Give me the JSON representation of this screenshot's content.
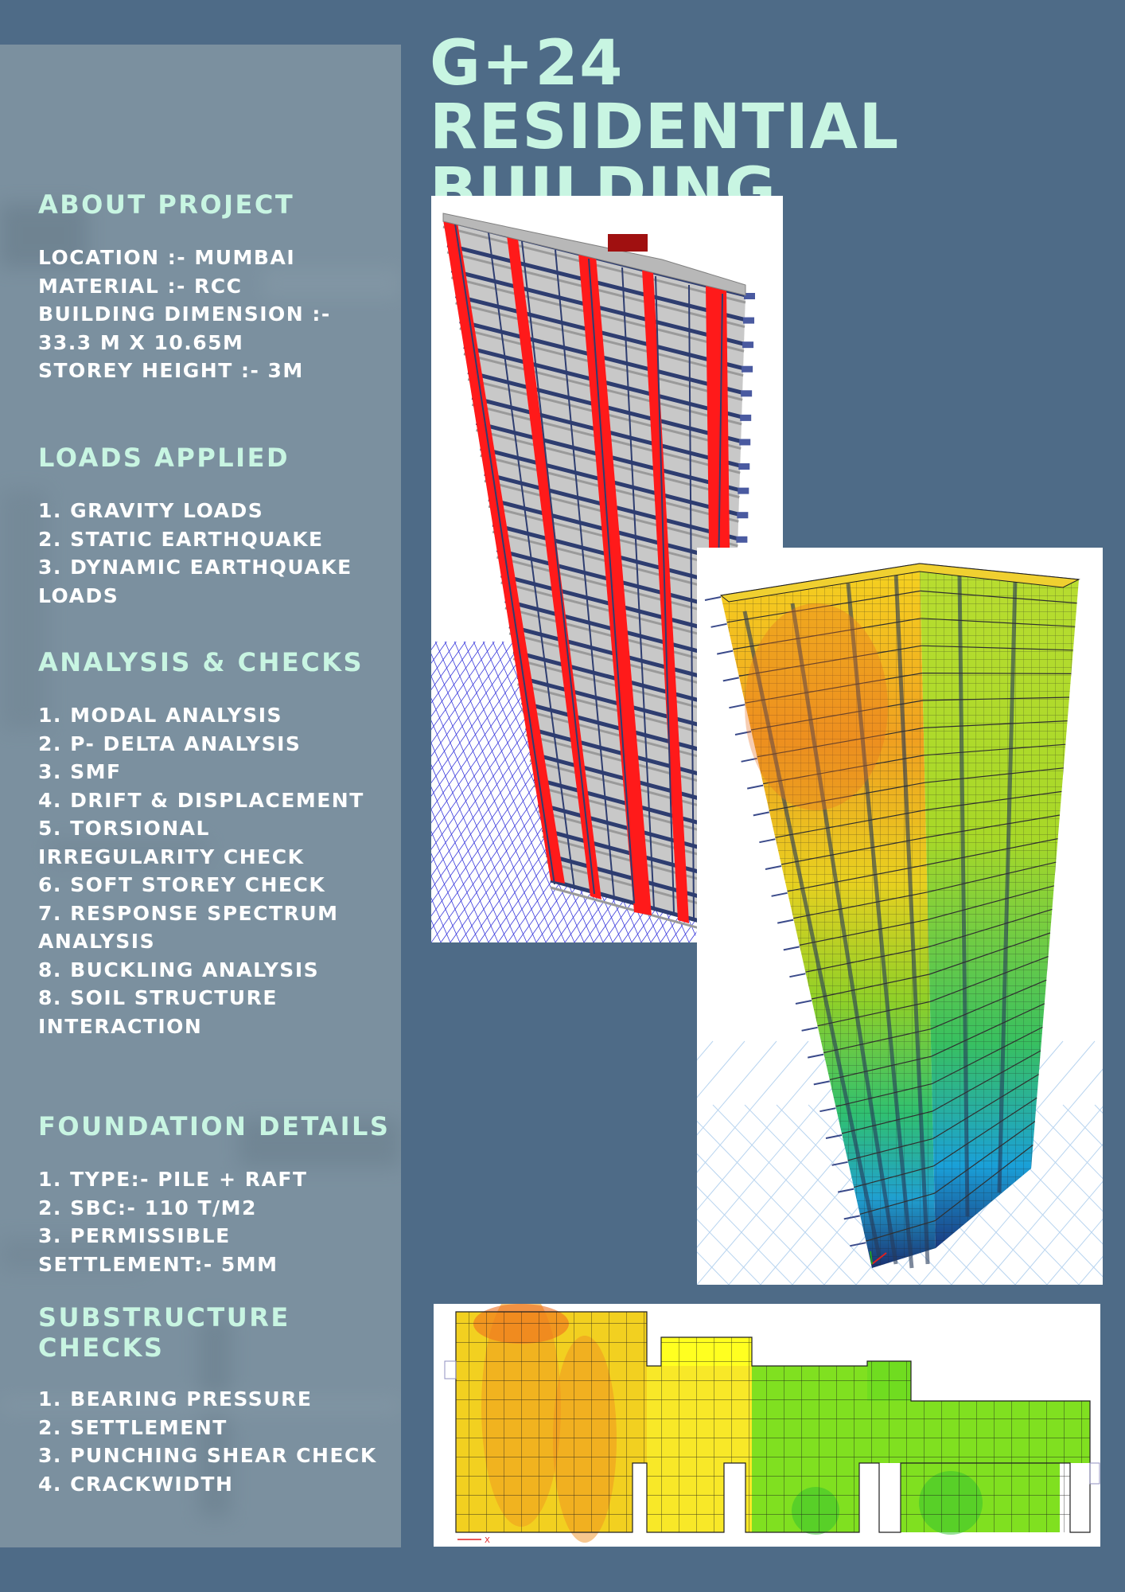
{
  "title": "G+24 RESIDENTIAL BUILDING",
  "sections": {
    "about": {
      "heading": "ABOUT PROJECT",
      "lines": [
        "LOCATION :- MUMBAI",
        "MATERIAL :- RCC",
        "BUILDING DIMENSION :-",
        "33.3 M X 10.65M",
        "STOREY HEIGHT :- 3M"
      ]
    },
    "loads": {
      "heading": "LOADS APPLIED",
      "lines": [
        "1. GRAVITY LOADS",
        "2. STATIC EARTHQUAKE",
        "3. DYNAMIC EARTHQUAKE LOADS"
      ]
    },
    "analysis": {
      "heading": "ANALYSIS & CHECKS",
      "lines": [
        "1. MODAL ANALYSIS",
        "2. P- DELTA ANALYSIS",
        "3. SMF",
        "4. DRIFT & DISPLACEMENT",
        "5. TORSIONAL IRREGULARITY CHECK",
        "6. SOFT STOREY CHECK",
        "7. RESPONSE SPECTRUM ANALYSIS",
        "8. BUCKLING ANALYSIS",
        "8. SOIL STRUCTURE INTERACTION"
      ]
    },
    "foundation": {
      "heading": "FOUNDATION DETAILS",
      "lines": [
        "1. TYPE:- PILE + RAFT",
        "2. SBC:- 110 T/M2",
        "3. PERMISSIBLE SETTLEMENT:- 5MM"
      ]
    },
    "substructure": {
      "heading": "SUBSTRUCTURE CHECKS",
      "lines": [
        "1. BEARING PRESSURE",
        "2. SETTLEMENT",
        "3. PUNCHING SHEAR CHECK",
        "4. CRACKWIDTH"
      ]
    }
  },
  "images": {
    "frame_model": "building-3d-frame-model",
    "contour_model": "building-stress-contour-model",
    "raft_plan": "raft-pressure-contour-plan"
  },
  "raft_plan": {
    "axis_label": "X"
  },
  "colors": {
    "background": "#4e6b87",
    "sidebar": "#7b909f",
    "heading": "#c8f5e2",
    "body_text": "#ffffff",
    "frame_red": "#ff1a1a",
    "slab_gray": "#c8c8c8",
    "beam_navy": "#2e3d70",
    "grid_blue": "#3a3adc"
  }
}
